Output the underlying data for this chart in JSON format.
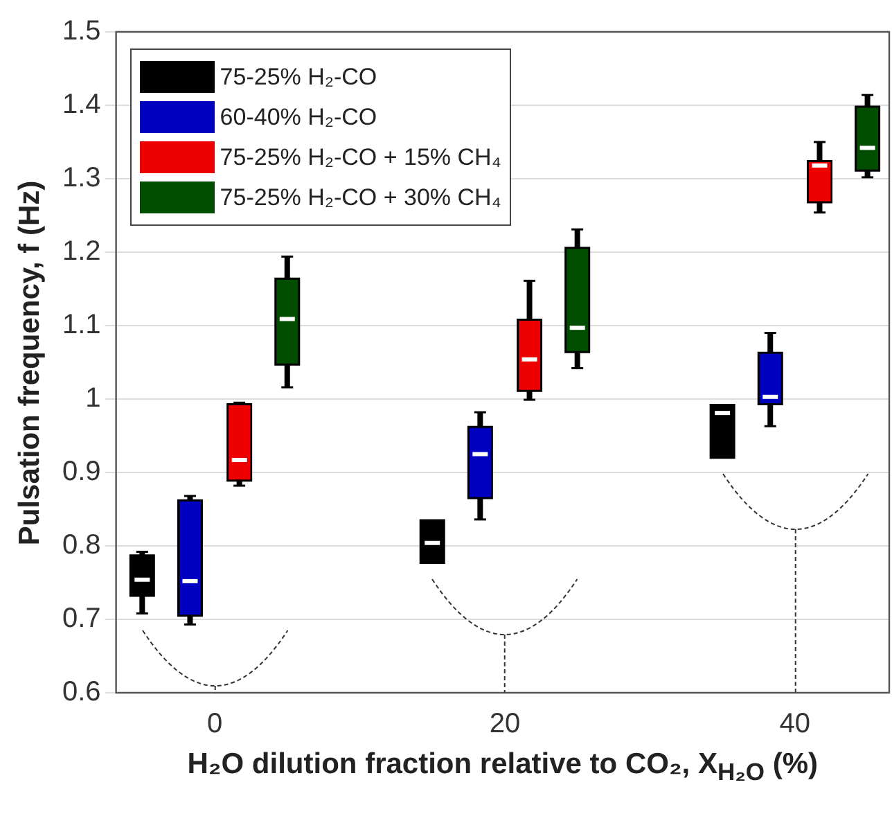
{
  "chart_data": {
    "type": "box",
    "xlabel": "H₂O dilution fraction relative to CO₂, X$_{H₂O}$ (%)",
    "ylabel": "Pulsation frequency, f (Hz)",
    "xlim": [
      -6.8,
      46.5
    ],
    "xticks": [
      0,
      20,
      40
    ],
    "ylim": [
      0.6,
      1.5
    ],
    "yticks": [
      0.6,
      0.7,
      0.8,
      0.9,
      1,
      1.1,
      1.2,
      1.3,
      1.4,
      1.5
    ],
    "grid": "y",
    "legend": "top left",
    "series": [
      {
        "name": "75-25% H₂-CO",
        "color": "#000000",
        "x": [
          -5,
          15,
          35
        ],
        "boxes": [
          {
            "low": 0.708,
            "q1": 0.732,
            "median": 0.754,
            "q3": 0.787,
            "high": 0.792
          },
          {
            "low": 0.777,
            "q1": 0.777,
            "median": 0.804,
            "q3": 0.835,
            "high": 0.835
          },
          {
            "low": 0.92,
            "q1": 0.92,
            "median": 0.981,
            "q3": 0.992,
            "high": 0.992
          }
        ]
      },
      {
        "name": "60-40% H₂-CO",
        "color": "#0000c0",
        "x": [
          -1.7,
          18.3,
          38.3
        ],
        "boxes": [
          {
            "low": 0.693,
            "q1": 0.705,
            "median": 0.752,
            "q3": 0.862,
            "high": 0.868
          },
          {
            "low": 0.836,
            "q1": 0.865,
            "median": 0.925,
            "q3": 0.962,
            "high": 0.982
          },
          {
            "low": 0.963,
            "q1": 0.993,
            "median": 1.003,
            "q3": 1.063,
            "high": 1.09
          }
        ]
      },
      {
        "name": "75-25% H₂-CO + 15% CH₄",
        "color": "#ee0000",
        "x": [
          1.7,
          21.7,
          41.7
        ],
        "boxes": [
          {
            "low": 0.882,
            "q1": 0.889,
            "median": 0.917,
            "q3": 0.993,
            "high": 0.995
          },
          {
            "low": 0.999,
            "q1": 1.011,
            "median": 1.054,
            "q3": 1.108,
            "high": 1.161
          },
          {
            "low": 1.254,
            "q1": 1.268,
            "median": 1.318,
            "q3": 1.324,
            "high": 1.35
          }
        ]
      },
      {
        "name": "75-25% H₂-CO + 30% CH₄",
        "color": "#004d00",
        "x": [
          5,
          25,
          45
        ],
        "boxes": [
          {
            "low": 1.016,
            "q1": 1.047,
            "median": 1.109,
            "q3": 1.164,
            "high": 1.194
          },
          {
            "low": 1.042,
            "q1": 1.064,
            "median": 1.097,
            "q3": 1.206,
            "high": 1.231
          },
          {
            "low": 1.302,
            "q1": 1.311,
            "median": 1.342,
            "q3": 1.398,
            "high": 1.414
          }
        ]
      }
    ]
  }
}
